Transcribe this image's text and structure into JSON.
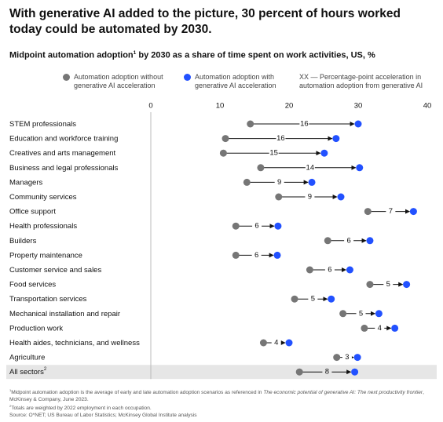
{
  "chart_data": {
    "type": "dumbbell",
    "title": "With generative AI added to the picture, 30 percent of hours worked today could be automated by 2030.",
    "subtitle": "Midpoint automation adoption",
    "subtitle_marker": "1",
    "subtitle_end": " by 2030 as a share of time spent on work activities, US, %",
    "categories": [
      "STEM professionals",
      "Education and workforce training",
      "Creatives and arts management",
      "Business and legal professionals",
      "Managers",
      "Community services",
      "Office support",
      "Health professionals",
      "Builders",
      "Property maintenance",
      "Customer service and sales",
      "Food services",
      "Transportation services",
      "Mechanical installation and repair",
      "Production work",
      "Health aides, technicians, and wellness",
      "Agriculture",
      "All sectors"
    ],
    "total_marker": "2",
    "series": [
      {
        "name": "Automation adoption without generative AI acceleration",
        "color": "#767676",
        "values": [
          14.4,
          10.8,
          10.5,
          15.9,
          13.9,
          18.5,
          31.4,
          12.3,
          25.6,
          12.3,
          23.0,
          31.7,
          20.8,
          27.8,
          30.9,
          16.3,
          26.9,
          21.5
        ]
      },
      {
        "name": "Automation adoption with generative AI acceleration",
        "color": "#2251ff",
        "values": [
          30.0,
          26.8,
          25.1,
          30.2,
          23.3,
          27.5,
          38.0,
          18.4,
          31.7,
          18.3,
          28.8,
          37.0,
          26.1,
          33.0,
          35.3,
          20.0,
          29.9,
          29.5
        ]
      }
    ],
    "acceleration": [
      16,
      16,
      15,
      14,
      9,
      9,
      7,
      6,
      6,
      6,
      6,
      5,
      5,
      5,
      4,
      4,
      3,
      8
    ],
    "acceleration_legend": "XX — Percentage-point acceleration in automation adoption from generative AI",
    "xlim": [
      0,
      40
    ],
    "xticks": [
      0,
      10,
      20,
      30,
      40
    ],
    "footnotes": [
      {
        "marker": "1",
        "text": "Midpoint automation adoption is the average of early and late automation adoption scenarios as referenced in ",
        "italic": "The economic potential of generative AI: The next productivity frontier",
        "end": ", McKinsey & Company, June 2023."
      },
      {
        "marker": "2",
        "text": "Totals are weighted by 2022 employment in each occupation."
      }
    ],
    "source": "Source: O*NET; US Bureau of Labor Statistics; McKinsey Global Institute analysis"
  }
}
